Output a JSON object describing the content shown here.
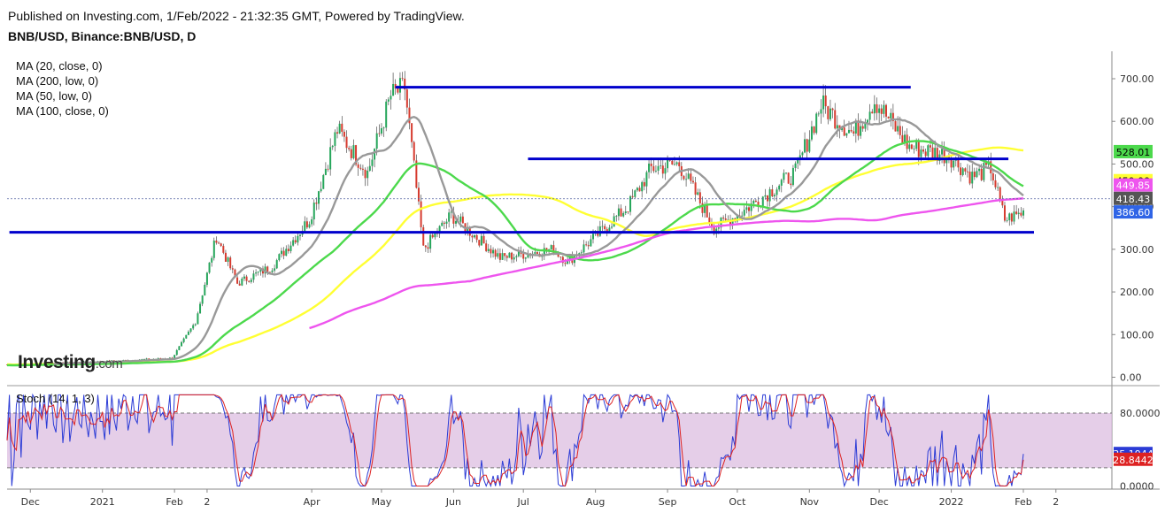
{
  "header": {
    "published": "Published on Investing.com, 1/Feb/2022 - 21:32:35 GMT, Powered by TradingView.",
    "symbol": "BNB/USD, Binance:BNB/USD, D"
  },
  "legend": [
    "MA (20, close, 0)",
    "MA (200, low, 0)",
    "MA (50, low, 0)",
    "MA (100, close, 0)"
  ],
  "logo": {
    "name": "Investing",
    "suffix": ".com"
  },
  "price_axis": {
    "ticks": [
      "700.00",
      "600.00",
      "500.00",
      "400.00",
      "300.00",
      "200.00",
      "100.00",
      "0.00"
    ]
  },
  "price_tags": [
    {
      "label": "528.01",
      "value": 528.01,
      "bg": "#4cd94c",
      "fg": "#000000"
    },
    {
      "label": "459.99",
      "value": 459.99,
      "bg": "#ffff33",
      "fg": "#000000"
    },
    {
      "label": "449.85",
      "value": 449.85,
      "bg": "#ee55ee",
      "fg": "#ffffff"
    },
    {
      "label": "418.43",
      "value": 418.43,
      "bg": "#555555",
      "fg": "#ffffff"
    },
    {
      "label": "386.60",
      "value": 386.6,
      "bg": "#2f64e6",
      "fg": "#ffffff"
    }
  ],
  "stoch": {
    "label": "Stoch (14, 1, 3)",
    "ticks": [
      "80.0000",
      "0.0000"
    ],
    "tags": [
      {
        "label": "35.1944",
        "value": 35.1944,
        "bg": "#2b3bd6",
        "fg": "#ffffff"
      },
      {
        "label": "28.8442",
        "value": 28.8442,
        "bg": "#dd2222",
        "fg": "#ffffff"
      }
    ],
    "upper": 80,
    "lower": 20
  },
  "time_axis": {
    "labels": [
      "Dec",
      "2021",
      "Feb",
      "2",
      "Apr",
      "May",
      "Jun",
      "Jul",
      "Aug",
      "Sep",
      "Oct",
      "Nov",
      "Dec",
      "2022",
      "Feb",
      "2"
    ]
  },
  "colors": {
    "up": "#26a65b",
    "down": "#d63b2f",
    "level": "#0000cc",
    "ma20": "#999999",
    "ma200": "#ee55ee",
    "ma50": "#4cd94c",
    "ma100": "#ffff33",
    "stoch_k": "#2b3bd6",
    "stoch_d": "#dd2222",
    "stoch_band": "#dcbde0"
  },
  "chart_data": {
    "type": "candlestick",
    "symbol": "BNB/USD",
    "ylim": [
      0,
      720
    ],
    "price_trend": [
      [
        "2020-11-24",
        30
      ],
      [
        "2020-12-31",
        37
      ],
      [
        "2021-01-31",
        45
      ],
      [
        "2021-02-10",
        130
      ],
      [
        "2021-02-19",
        330
      ],
      [
        "2021-02-28",
        220
      ],
      [
        "2021-03-15",
        260
      ],
      [
        "2021-03-31",
        370
      ],
      [
        "2021-04-12",
        580
      ],
      [
        "2021-04-25",
        480
      ],
      [
        "2021-05-05",
        660
      ],
      [
        "2021-05-11",
        680
      ],
      [
        "2021-05-19",
        300
      ],
      [
        "2021-05-31",
        380
      ],
      [
        "2021-06-21",
        280
      ],
      [
        "2021-07-14",
        300
      ],
      [
        "2021-07-20",
        270
      ],
      [
        "2021-08-15",
        400
      ],
      [
        "2021-08-25",
        490
      ],
      [
        "2021-09-06",
        500
      ],
      [
        "2021-09-21",
        350
      ],
      [
        "2021-10-01",
        380
      ],
      [
        "2021-10-26",
        480
      ],
      [
        "2021-11-06",
        640
      ],
      [
        "2021-11-20",
        570
      ],
      [
        "2021-11-29",
        650
      ],
      [
        "2021-12-14",
        540
      ],
      [
        "2021-12-31",
        520
      ],
      [
        "2022-01-10",
        470
      ],
      [
        "2022-01-18",
        490
      ],
      [
        "2022-01-24",
        370
      ],
      [
        "2022-02-01",
        386.6
      ]
    ],
    "moving_averages": [
      {
        "name": "MA (20, close, 0)",
        "last": 418.43
      },
      {
        "name": "MA (200, low, 0)",
        "last": 449.85
      },
      {
        "name": "MA (50, low, 0)",
        "last": 528.01
      },
      {
        "name": "MA (100, close, 0)",
        "last": 459.99
      }
    ],
    "horizontal_levels": [
      {
        "value": 680,
        "from": "2021-05-07",
        "to": "2021-12-10"
      },
      {
        "value": 512,
        "from": "2021-07-03",
        "to": "2022-01-21"
      },
      {
        "value": 340,
        "from": "2020-11-22",
        "to": "2022-02-01"
      }
    ],
    "current_price": 386.6,
    "stochastic": {
      "k_last": 35.1944,
      "d_last": 28.8442,
      "levels": [
        80,
        20
      ]
    }
  }
}
